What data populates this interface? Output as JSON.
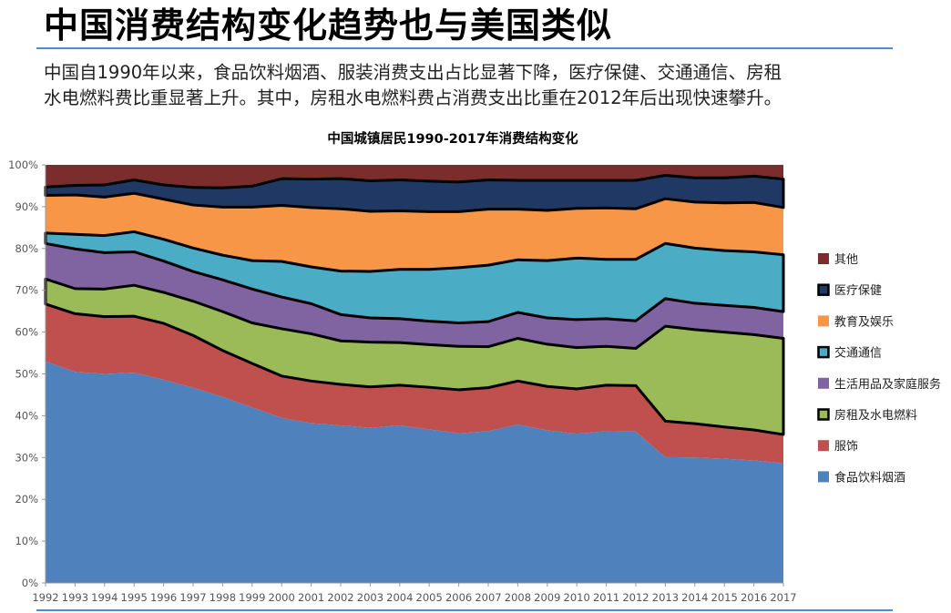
{
  "slide": {
    "title": "中国消费结构变化趋势也与美国类似",
    "subtitle_lines": [
      "中国自1990年以来，食品饮料烟酒、服装消费支出占比显著下降，医疗保健、交通通信、房租",
      "水电燃料费比重显著上升。其中，房租水电燃料费占消费支出比重在2012年后出现快速攀升。"
    ]
  },
  "chart_data": {
    "type": "area",
    "stacked": true,
    "title": "中国城镇居民1990-2017年消费结构变化",
    "x": [
      "1992",
      "1993",
      "1994",
      "1995",
      "1996",
      "1997",
      "1998",
      "1999",
      "2000",
      "2001",
      "2002",
      "2003",
      "2004",
      "2005",
      "2006",
      "2007",
      "2008",
      "2009",
      "2010",
      "2011",
      "2012",
      "2013",
      "2014",
      "2015",
      "2016",
      "2017"
    ],
    "ylim": [
      0,
      100
    ],
    "y_ticks": [
      "0%",
      "10%",
      "20%",
      "30%",
      "40%",
      "50%",
      "60%",
      "70%",
      "80%",
      "90%",
      "100%"
    ],
    "grid": false,
    "legend_position": "right",
    "series": [
      {
        "name": "食品饮料烟酒",
        "color": "#4f81bd",
        "outlined": false,
        "values": [
          53,
          50.5,
          50,
          50.3,
          48.6,
          46.7,
          44.5,
          42,
          39.5,
          38.2,
          37.7,
          37.1,
          37.7,
          36.7,
          35.8,
          36.3,
          37.9,
          36.5,
          35.7,
          36.3,
          36.2,
          30.1,
          30,
          29.7,
          29.3,
          28.6
        ]
      },
      {
        "name": "服饰",
        "color": "#c0504d",
        "outlined": false,
        "values": [
          13.7,
          13.9,
          13.7,
          13.5,
          13.5,
          12.5,
          11.1,
          10.5,
          10,
          10.1,
          9.8,
          9.8,
          9.6,
          10.1,
          10.4,
          10.4,
          10.4,
          10.5,
          10.7,
          11,
          11,
          8.6,
          8.1,
          7.6,
          7.3,
          6.9
        ]
      },
      {
        "name": "房租及水电燃料",
        "color": "#9bbb59",
        "outlined": true,
        "values": [
          6,
          6,
          6.6,
          7.4,
          7.4,
          8.2,
          9.3,
          9.7,
          11.3,
          11.3,
          10.4,
          10.7,
          10.2,
          10.2,
          10.4,
          9.8,
          10.2,
          10.1,
          9.9,
          9.3,
          8.9,
          22.7,
          22.5,
          22.7,
          22.8,
          23
        ]
      },
      {
        "name": "生活用品及家庭服务",
        "color": "#8064a2",
        "outlined": false,
        "values": [
          8.5,
          9.5,
          8.7,
          8,
          7.5,
          7.1,
          7.6,
          8.1,
          7.6,
          7.2,
          6.3,
          5.8,
          5.7,
          5.6,
          5.6,
          6,
          6.2,
          6.3,
          6.7,
          6.6,
          6.6,
          6.6,
          6.3,
          6.4,
          6.5,
          6.4
        ]
      },
      {
        "name": "交通通信",
        "color": "#4bacc6",
        "outlined": true,
        "values": [
          2.5,
          3.5,
          4.1,
          4.8,
          5.2,
          5.6,
          5.9,
          6.8,
          8.5,
          8.8,
          10.4,
          11.1,
          11.8,
          12.4,
          13.2,
          13.5,
          12.6,
          13.7,
          14.7,
          14.2,
          14.7,
          13.2,
          13.2,
          13.1,
          13.3,
          13.6
        ]
      },
      {
        "name": "教育及娱乐",
        "color": "#f79646",
        "outlined": false,
        "values": [
          9,
          9.4,
          9.2,
          9.2,
          9.6,
          10.3,
          11.5,
          12.8,
          13.4,
          14.2,
          14.9,
          14.4,
          14,
          13.8,
          13.4,
          13.4,
          12.1,
          12,
          11.9,
          12.3,
          12.1,
          10.7,
          11,
          11.4,
          11.8,
          11.3
        ]
      },
      {
        "name": "医疗保健",
        "color": "#1f3864",
        "outlined": true,
        "values": [
          2,
          2.3,
          2.9,
          3.2,
          3.4,
          4.2,
          4.6,
          5,
          6.4,
          6.8,
          7.2,
          7.3,
          7.4,
          7.3,
          7.1,
          7,
          6.9,
          7.2,
          6.7,
          6.6,
          6.8,
          5.6,
          5.8,
          6,
          6.3,
          6.8
        ]
      },
      {
        "name": "其他",
        "color": "#7b2c2c",
        "outlined": false,
        "values": [
          5.3,
          4.9,
          4.8,
          3.6,
          4.8,
          5.4,
          5.5,
          5.1,
          3.3,
          3.4,
          3.3,
          3.8,
          3.6,
          3.9,
          4.1,
          3.6,
          3.7,
          3.7,
          3.7,
          3.7,
          3.7,
          2.5,
          3.1,
          3.1,
          2.7,
          3.4
        ]
      }
    ],
    "legend_order": [
      "其他",
      "医疗保健",
      "教育及娱乐",
      "交通通信",
      "生活用品及家庭服务",
      "房租及水电燃料",
      "服饰",
      "食品饮料烟酒"
    ]
  }
}
